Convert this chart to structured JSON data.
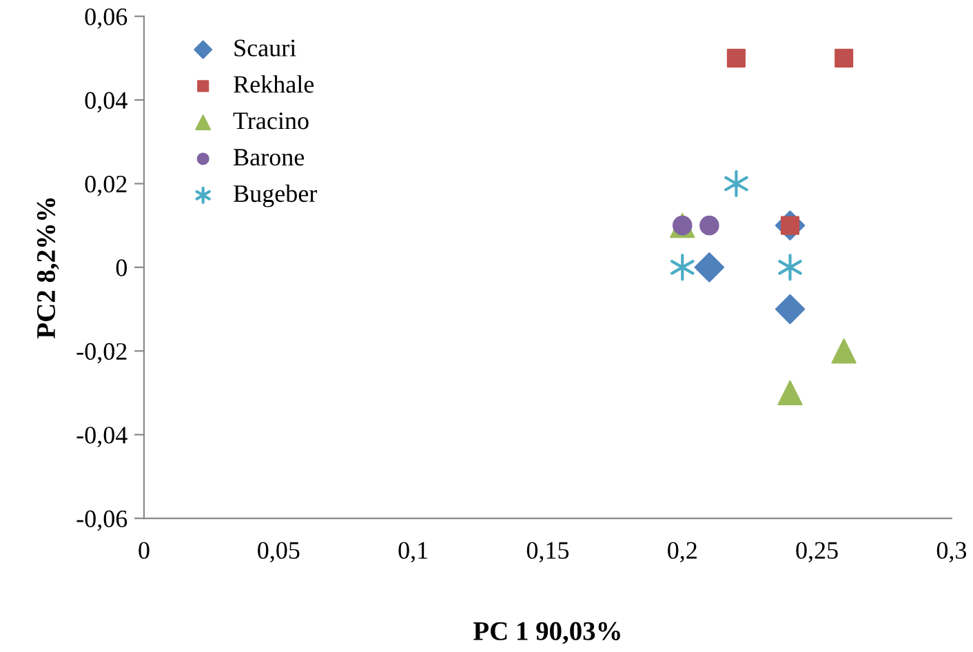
{
  "chart_data": {
    "type": "scatter",
    "xlabel": "PC 1 90,03%",
    "ylabel": "PC2 8,2%%",
    "xlim": [
      0,
      0.3
    ],
    "xticks": [
      {
        "value": 0,
        "label": "0"
      },
      {
        "value": 0.05,
        "label": "0,05"
      },
      {
        "value": 0.1,
        "label": "0,1"
      },
      {
        "value": 0.15,
        "label": "0,15"
      },
      {
        "value": 0.2,
        "label": "0,2"
      },
      {
        "value": 0.25,
        "label": "0,25"
      },
      {
        "value": 0.3,
        "label": "0,3"
      }
    ],
    "ylim": [
      -0.06,
      0.06
    ],
    "yticks": [
      {
        "value": -0.06,
        "label": "-0,06"
      },
      {
        "value": -0.04,
        "label": "-0,04"
      },
      {
        "value": -0.02,
        "label": "-0,02"
      },
      {
        "value": 0,
        "label": "0"
      },
      {
        "value": 0.02,
        "label": "0,02"
      },
      {
        "value": 0.04,
        "label": "0,04"
      },
      {
        "value": 0.06,
        "label": "0,06"
      }
    ],
    "grid": false,
    "legend": "top left",
    "series": [
      {
        "name": "Scauri",
        "color": "#4f81bd",
        "marker": "diamond",
        "x": [
          0.21,
          0.24,
          0.24
        ],
        "values": [
          0,
          0.01,
          -0.01
        ]
      },
      {
        "name": "Rekhale",
        "color": "#c0504d",
        "marker": "square",
        "x": [
          0.22,
          0.26,
          0.24
        ],
        "values": [
          0.05,
          0.05,
          0.01
        ]
      },
      {
        "name": "Tracino",
        "color": "#9bbb59",
        "marker": "triangle",
        "x": [
          0.2,
          0.24,
          0.26
        ],
        "values": [
          0.01,
          -0.03,
          -0.02
        ]
      },
      {
        "name": "Barone",
        "color": "#8064a2",
        "marker": "circle",
        "x": [
          0.2,
          0.21
        ],
        "values": [
          0.01,
          0.01
        ]
      },
      {
        "name": "Bugeber",
        "color": "#4bacc6",
        "marker": "cross",
        "x": [
          0.2,
          0.22,
          0.24
        ],
        "values": [
          0,
          0.02,
          0
        ]
      }
    ]
  }
}
